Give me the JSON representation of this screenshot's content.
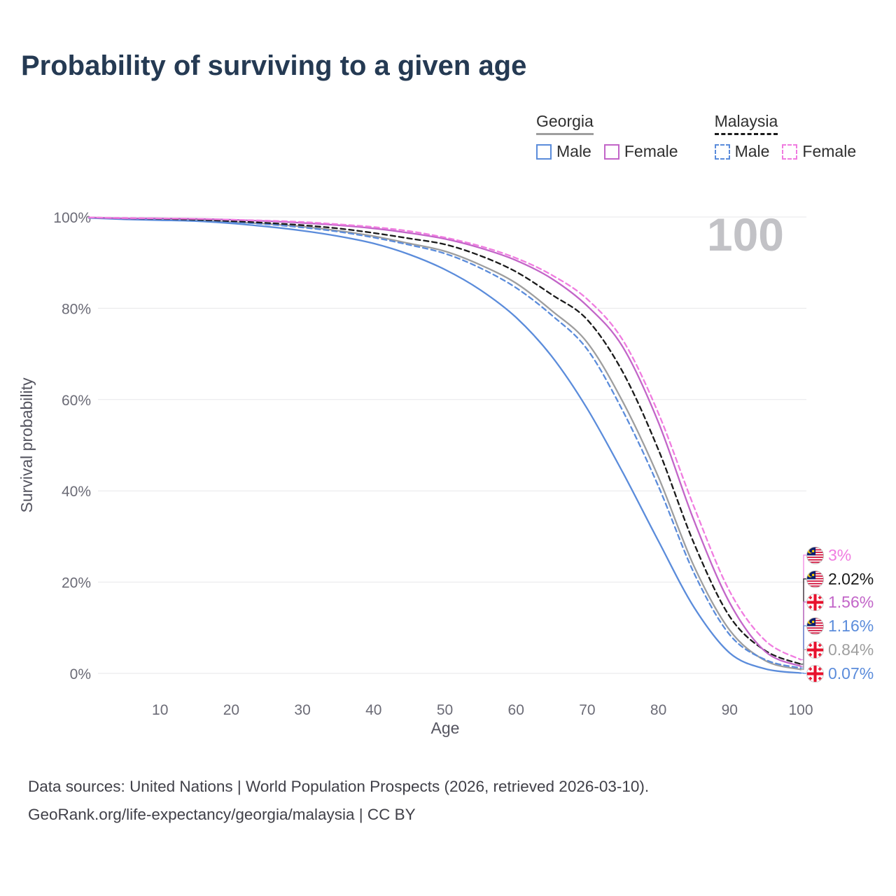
{
  "page_title": "Probability of surviving to a given age",
  "legend": {
    "groups": [
      {
        "label": "Georgia",
        "color": "#9e9e9e",
        "dashed": false
      },
      {
        "label": "Malaysia",
        "color": "#1a1a1a",
        "dashed": true
      }
    ],
    "items": [
      {
        "group": "Georgia",
        "label": "Male",
        "color": "#5b8cdb",
        "dashed": false
      },
      {
        "group": "Georgia",
        "label": "Female",
        "color": "#c265c8",
        "dashed": false
      },
      {
        "group": "Malaysia",
        "label": "Male",
        "color": "#5b8cdb",
        "dashed": true
      },
      {
        "group": "Malaysia",
        "label": "Female",
        "color": "#f07ce0",
        "dashed": true
      }
    ]
  },
  "chart_data": {
    "type": "line",
    "title": "Probability of surviving to a given age",
    "xlabel": "Age",
    "ylabel": "Survival probability",
    "watermark": "100",
    "xlim": [
      0,
      100
    ],
    "ylim": [
      0,
      100
    ],
    "x_ticks": [
      10,
      20,
      30,
      40,
      50,
      60,
      70,
      80,
      90,
      100
    ],
    "y_ticks": [
      0,
      20,
      40,
      60,
      80,
      100
    ],
    "grid": "horizontal",
    "legend_position": "top-right",
    "x": [
      0,
      5,
      10,
      15,
      20,
      25,
      30,
      35,
      40,
      45,
      50,
      55,
      60,
      65,
      70,
      75,
      80,
      85,
      90,
      95,
      100
    ],
    "series": [
      {
        "id": "georgia-all",
        "name": "Georgia",
        "color": "#9e9e9e",
        "dashed": false,
        "values": [
          99.9,
          99.6,
          99.5,
          99.3,
          98.9,
          98.5,
          97.9,
          97.0,
          95.8,
          94.2,
          92.5,
          89.5,
          85.5,
          79.5,
          72.5,
          59.5,
          43.0,
          23.5,
          9.5,
          2.8,
          0.84
        ]
      },
      {
        "id": "georgia-male",
        "name": "Georgia Male",
        "color": "#5b8cdb",
        "dashed": false,
        "values": [
          99.8,
          99.5,
          99.3,
          99.1,
          98.6,
          97.9,
          97.0,
          95.8,
          94.2,
          91.8,
          88.5,
          84.0,
          78.0,
          69.5,
          58.0,
          44.0,
          29.0,
          14.5,
          4.5,
          1.0,
          0.07
        ]
      },
      {
        "id": "malaysia-male",
        "name": "Malaysia Male",
        "color": "#5b8cdb",
        "dashed": true,
        "values": [
          99.8,
          99.6,
          99.5,
          99.3,
          98.9,
          98.4,
          97.7,
          96.8,
          95.5,
          93.9,
          92.0,
          88.8,
          84.5,
          78.5,
          71.0,
          57.5,
          41.0,
          22.0,
          8.5,
          3.0,
          1.16
        ]
      },
      {
        "id": "malaysia-all",
        "name": "Malaysia",
        "color": "#1a1a1a",
        "dashed": true,
        "values": [
          99.9,
          99.7,
          99.6,
          99.4,
          99.1,
          98.7,
          98.2,
          97.5,
          96.5,
          95.3,
          94.0,
          91.5,
          88.0,
          83.0,
          77.5,
          66.0,
          49.0,
          28.5,
          12.5,
          5.0,
          2.02
        ]
      },
      {
        "id": "georgia-female",
        "name": "Georgia Female",
        "color": "#c265c8",
        "dashed": false,
        "values": [
          99.9,
          99.7,
          99.7,
          99.6,
          99.4,
          99.1,
          98.7,
          98.2,
          97.5,
          96.5,
          95.2,
          93.2,
          90.5,
          86.5,
          80.5,
          71.5,
          55.0,
          33.5,
          15.5,
          4.8,
          1.56
        ]
      },
      {
        "id": "malaysia-female",
        "name": "Malaysia Female",
        "color": "#f07ce0",
        "dashed": true,
        "values": [
          99.9,
          99.8,
          99.7,
          99.6,
          99.4,
          99.2,
          98.9,
          98.4,
          97.8,
          96.9,
          95.5,
          93.6,
          91.0,
          87.3,
          82.0,
          73.0,
          57.0,
          36.5,
          18.0,
          7.2,
          3.0
        ]
      }
    ],
    "end_labels": [
      {
        "text": "3%",
        "value": 3,
        "flag": "malaysia",
        "color": "#f07ce0"
      },
      {
        "text": "2.02%",
        "value": 2.02,
        "flag": "malaysia",
        "color": "#1a1a1a"
      },
      {
        "text": "1.56%",
        "value": 1.56,
        "flag": "georgia",
        "color": "#c265c8"
      },
      {
        "text": "1.16%",
        "value": 1.16,
        "flag": "malaysia",
        "color": "#5b8cdb"
      },
      {
        "text": "0.84%",
        "value": 0.84,
        "flag": "georgia",
        "color": "#9e9e9e"
      },
      {
        "text": "0.07%",
        "value": 0.07,
        "flag": "georgia",
        "color": "#5b8cdb"
      }
    ]
  },
  "footer": {
    "line1": "Data sources: United Nations | World Population Prospects (2026, retrieved 2026-03-10).",
    "line2": "GeoRank.org/life-expectancy/georgia/malaysia | CC BY"
  }
}
